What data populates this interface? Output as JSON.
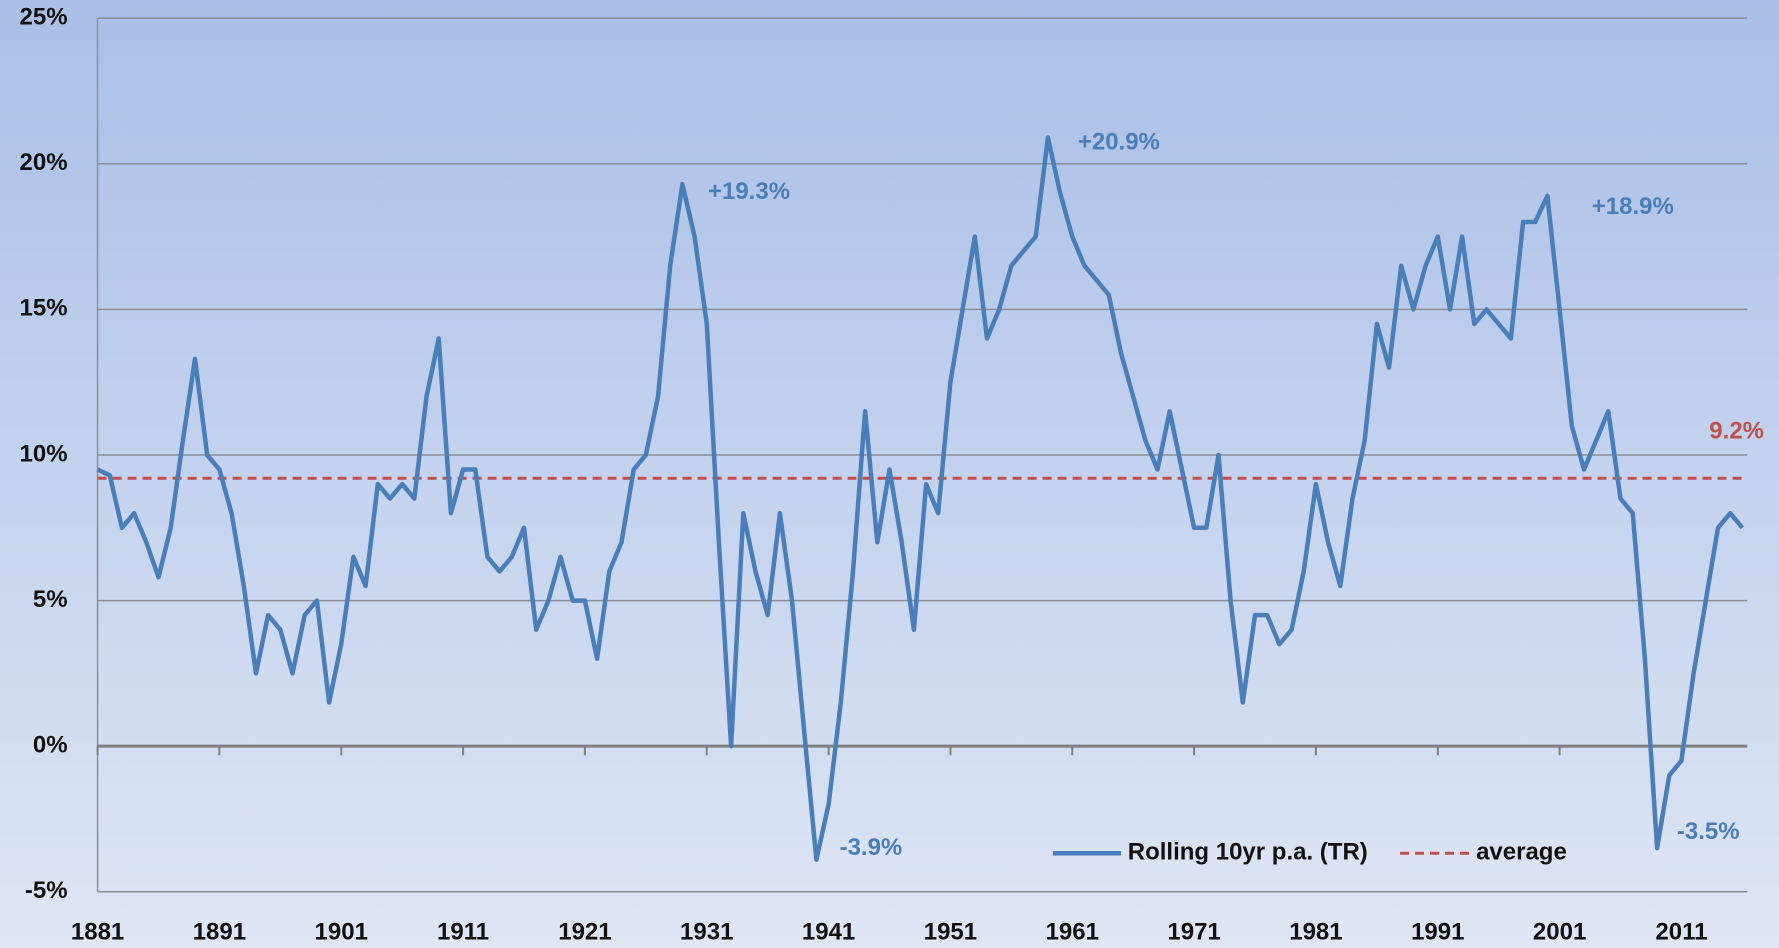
{
  "chart_data": {
    "type": "line",
    "xlim": [
      1881,
      2016.4
    ],
    "xticks": [
      1881,
      1891,
      1901,
      1911,
      1921,
      1931,
      1941,
      1951,
      1961,
      1971,
      1981,
      1991,
      2001,
      2011
    ],
    "ylim": [
      -5,
      25
    ],
    "yticks": [
      {
        "value": -5,
        "label": "-5%"
      },
      {
        "value": 0,
        "label": "0%"
      },
      {
        "value": 5,
        "label": "5%"
      },
      {
        "value": 10,
        "label": "10%"
      },
      {
        "value": 15,
        "label": "15%"
      },
      {
        "value": 20,
        "label": "20%"
      },
      {
        "value": 25,
        "label": "25%"
      }
    ],
    "grid": true,
    "series": [
      {
        "name": "Rolling 10yr p.a. (TR)",
        "color": "#4a7ebb",
        "x": [
          1881,
          1882,
          1883,
          1884,
          1885,
          1886,
          1887,
          1888,
          1889,
          1890,
          1891,
          1892,
          1893,
          1894,
          1895,
          1896,
          1897,
          1898,
          1899,
          1900,
          1901,
          1902,
          1903,
          1904,
          1905,
          1906,
          1907,
          1908,
          1909,
          1910,
          1911,
          1912,
          1913,
          1914,
          1915,
          1916,
          1917,
          1918,
          1919,
          1920,
          1921,
          1922,
          1923,
          1924,
          1925,
          1926,
          1927,
          1928,
          1929,
          1930,
          1931,
          1932,
          1933,
          1934,
          1935,
          1936,
          1937,
          1938,
          1939,
          1940,
          1941,
          1942,
          1943,
          1944,
          1945,
          1946,
          1947,
          1948,
          1949,
          1950,
          1951,
          1952,
          1953,
          1954,
          1955,
          1956,
          1957,
          1958,
          1959,
          1960,
          1961,
          1962,
          1963,
          1964,
          1965,
          1966,
          1967,
          1968,
          1969,
          1970,
          1971,
          1972,
          1973,
          1974,
          1975,
          1976,
          1977,
          1978,
          1979,
          1980,
          1981,
          1982,
          1983,
          1984,
          1985,
          1986,
          1987,
          1988,
          1989,
          1990,
          1991,
          1992,
          1993,
          1994,
          1995,
          1996,
          1997,
          1998,
          1999,
          2000,
          2001,
          2002,
          2003,
          2004,
          2005,
          2006,
          2007,
          2008,
          2009,
          2010,
          2011,
          2012,
          2013,
          2014,
          2015,
          2016
        ],
        "values": [
          9.5,
          9.3,
          7.5,
          8.0,
          7.0,
          5.8,
          7.5,
          10.5,
          13.3,
          10.0,
          9.5,
          8.0,
          5.5,
          2.5,
          4.5,
          4.0,
          2.5,
          4.5,
          5.0,
          1.5,
          3.5,
          6.5,
          5.5,
          9.0,
          8.5,
          9.0,
          8.5,
          12.0,
          14.0,
          8.0,
          9.5,
          9.5,
          6.5,
          6.0,
          6.5,
          7.5,
          4.0,
          5.0,
          6.5,
          5.0,
          5.0,
          3.0,
          6.0,
          7.0,
          9.5,
          10.0,
          12.0,
          16.5,
          19.3,
          17.5,
          14.5,
          7.0,
          0.0,
          8.0,
          6.0,
          4.5,
          8.0,
          5.0,
          0.5,
          -3.9,
          -2.0,
          1.5,
          6.0,
          11.5,
          7.0,
          9.5,
          7.0,
          4.0,
          9.0,
          8.0,
          12.5,
          15.0,
          17.5,
          14.0,
          15.0,
          16.5,
          17.0,
          17.5,
          20.9,
          19.0,
          17.5,
          16.5,
          16.0,
          15.5,
          13.5,
          12.0,
          10.5,
          9.5,
          11.5,
          9.5,
          7.5,
          7.5,
          10.0,
          5.0,
          1.5,
          4.5,
          4.5,
          3.5,
          4.0,
          6.0,
          9.0,
          7.0,
          5.5,
          8.5,
          10.5,
          14.5,
          13.0,
          16.5,
          15.0,
          16.5,
          17.5,
          15.0,
          17.5,
          14.5,
          15.0,
          14.5,
          14.0,
          18.0,
          18.0,
          18.9,
          15.0,
          11.0,
          9.5,
          10.5,
          11.5,
          8.5,
          8.0,
          3.0,
          -3.5,
          -1.0,
          -0.5,
          2.5,
          5.0,
          7.5,
          8.0,
          7.5
        ]
      }
    ],
    "average": {
      "name": "average",
      "value": 9.2,
      "label": "9.2%",
      "color": "#c0504d"
    },
    "annotations": [
      "+19.3%",
      "+20.9%",
      "+18.9%",
      "-3.9%",
      "-3.5%"
    ]
  }
}
